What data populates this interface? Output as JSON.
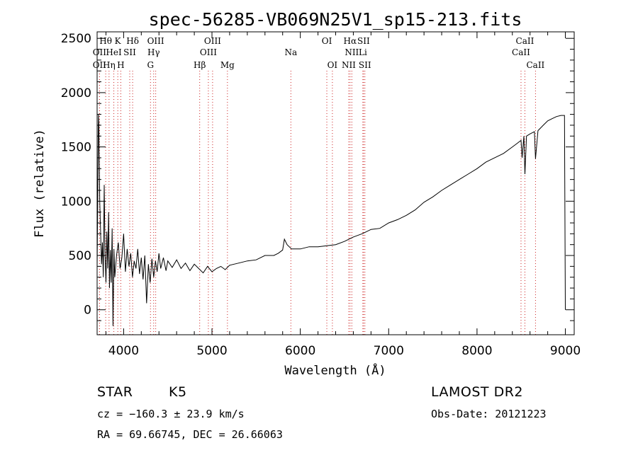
{
  "chart_data": {
    "type": "line",
    "title": "spec-56285-VB069N25V1_sp15-213.fits",
    "xlabel": "Wavelength (Å)",
    "ylabel": "Flux (relative)",
    "xlim": [
      3700,
      9100
    ],
    "ylim": [
      -230,
      2560
    ],
    "xticks": [
      4000,
      5000,
      6000,
      7000,
      8000,
      9000
    ],
    "yticks": [
      0,
      500,
      1000,
      1500,
      2000,
      2500
    ],
    "grid": false,
    "series": [
      {
        "points": [
          [
            3700,
            380
          ],
          [
            3715,
            1800
          ],
          [
            3720,
            1700
          ],
          [
            3725,
            1350
          ],
          [
            3730,
            1000
          ],
          [
            3740,
            700
          ],
          [
            3750,
            420
          ],
          [
            3760,
            620
          ],
          [
            3770,
            300
          ],
          [
            3780,
            1150
          ],
          [
            3790,
            500
          ],
          [
            3800,
            250
          ],
          [
            3810,
            720
          ],
          [
            3820,
            380
          ],
          [
            3830,
            900
          ],
          [
            3840,
            200
          ],
          [
            3850,
            550
          ],
          [
            3860,
            250
          ],
          [
            3870,
            750
          ],
          [
            3880,
            -150
          ],
          [
            3890,
            560
          ],
          [
            3900,
            300
          ],
          [
            3920,
            500
          ],
          [
            3940,
            620
          ],
          [
            3960,
            380
          ],
          [
            3980,
            480
          ],
          [
            4000,
            700
          ],
          [
            4020,
            350
          ],
          [
            4040,
            560
          ],
          [
            4060,
            400
          ],
          [
            4080,
            520
          ],
          [
            4100,
            300
          ],
          [
            4120,
            450
          ],
          [
            4140,
            380
          ],
          [
            4160,
            560
          ],
          [
            4180,
            330
          ],
          [
            4200,
            480
          ],
          [
            4220,
            280
          ],
          [
            4240,
            500
          ],
          [
            4260,
            60
          ],
          [
            4280,
            420
          ],
          [
            4300,
            250
          ],
          [
            4320,
            470
          ],
          [
            4340,
            300
          ],
          [
            4360,
            450
          ],
          [
            4380,
            350
          ],
          [
            4400,
            520
          ],
          [
            4420,
            380
          ],
          [
            4450,
            480
          ],
          [
            4480,
            360
          ],
          [
            4500,
            450
          ],
          [
            4550,
            390
          ],
          [
            4600,
            460
          ],
          [
            4650,
            380
          ],
          [
            4700,
            430
          ],
          [
            4750,
            360
          ],
          [
            4800,
            420
          ],
          [
            4850,
            380
          ],
          [
            4900,
            340
          ],
          [
            4950,
            400
          ],
          [
            5000,
            350
          ],
          [
            5050,
            380
          ],
          [
            5100,
            400
          ],
          [
            5150,
            370
          ],
          [
            5200,
            410
          ],
          [
            5300,
            430
          ],
          [
            5400,
            450
          ],
          [
            5500,
            460
          ],
          [
            5600,
            500
          ],
          [
            5700,
            500
          ],
          [
            5750,
            520
          ],
          [
            5800,
            550
          ],
          [
            5820,
            650
          ],
          [
            5850,
            600
          ],
          [
            5900,
            560
          ],
          [
            6000,
            560
          ],
          [
            6100,
            580
          ],
          [
            6200,
            580
          ],
          [
            6300,
            590
          ],
          [
            6400,
            600
          ],
          [
            6500,
            630
          ],
          [
            6600,
            670
          ],
          [
            6700,
            700
          ],
          [
            6800,
            740
          ],
          [
            6900,
            750
          ],
          [
            7000,
            800
          ],
          [
            7100,
            830
          ],
          [
            7200,
            870
          ],
          [
            7300,
            920
          ],
          [
            7400,
            990
          ],
          [
            7500,
            1040
          ],
          [
            7600,
            1100
          ],
          [
            7700,
            1150
          ],
          [
            7800,
            1200
          ],
          [
            7900,
            1250
          ],
          [
            8000,
            1300
          ],
          [
            8100,
            1360
          ],
          [
            8200,
            1400
          ],
          [
            8300,
            1440
          ],
          [
            8400,
            1500
          ],
          [
            8450,
            1530
          ],
          [
            8498,
            1560
          ],
          [
            8510,
            1400
          ],
          [
            8530,
            1600
          ],
          [
            8542,
            1250
          ],
          [
            8560,
            1600
          ],
          [
            8600,
            1620
          ],
          [
            8650,
            1640
          ],
          [
            8662,
            1390
          ],
          [
            8690,
            1650
          ],
          [
            8750,
            1700
          ],
          [
            8800,
            1740
          ],
          [
            8850,
            1760
          ],
          [
            8900,
            1780
          ],
          [
            8950,
            1790
          ],
          [
            8990,
            1790
          ],
          [
            9000,
            0
          ]
        ]
      }
    ],
    "line_markers": [
      {
        "label": "Hθ",
        "x": 3797,
        "row": 1
      },
      {
        "label": "OII",
        "x": 3727,
        "row": 2
      },
      {
        "label": "OII",
        "x": 3727,
        "row": 3
      },
      {
        "label": "K",
        "x": 3934,
        "row": 1
      },
      {
        "label": "HeI",
        "x": 3889,
        "row": 2
      },
      {
        "label": "Hη",
        "x": 3835,
        "row": 3
      },
      {
        "label": "SII",
        "x": 4069,
        "row": 2
      },
      {
        "label": "H",
        "x": 3968,
        "row": 3
      },
      {
        "label": "Hδ",
        "x": 4102,
        "row": 1
      },
      {
        "label": "OIII",
        "x": 4363,
        "row": 1
      },
      {
        "label": "Hγ",
        "x": 4340,
        "row": 2
      },
      {
        "label": "G",
        "x": 4304,
        "row": 3
      },
      {
        "label": "OIII",
        "x": 5007,
        "row": 1
      },
      {
        "label": "OIII",
        "x": 4959,
        "row": 2
      },
      {
        "label": "Hβ",
        "x": 4861,
        "row": 3
      },
      {
        "label": "Mg",
        "x": 5175,
        "row": 3
      },
      {
        "label": "Na",
        "x": 5893,
        "row": 2
      },
      {
        "label": "OI",
        "x": 6300,
        "row": 1
      },
      {
        "label": "OI",
        "x": 6363,
        "row": 3
      },
      {
        "label": "Hα",
        "x": 6563,
        "row": 1
      },
      {
        "label": "SII",
        "x": 6716,
        "row": 1
      },
      {
        "label": "NII",
        "x": 6583,
        "row": 2
      },
      {
        "label": "Li",
        "x": 6708,
        "row": 2
      },
      {
        "label": "NII",
        "x": 6548,
        "row": 3
      },
      {
        "label": "SII",
        "x": 6731,
        "row": 3
      },
      {
        "label": "CaII",
        "x": 8542,
        "row": 1
      },
      {
        "label": "CaII",
        "x": 8498,
        "row": 2
      },
      {
        "label": "CaII",
        "x": 8662,
        "row": 3
      }
    ]
  },
  "info": {
    "object_class": "STAR",
    "subclass": "K5",
    "survey": "LAMOST DR2",
    "redshift": "cz = −160.3 ± 23.9 km/s",
    "obs_date": "Obs-Date: 20121223",
    "coords": "RA =  69.66745, DEC =  26.66063"
  }
}
